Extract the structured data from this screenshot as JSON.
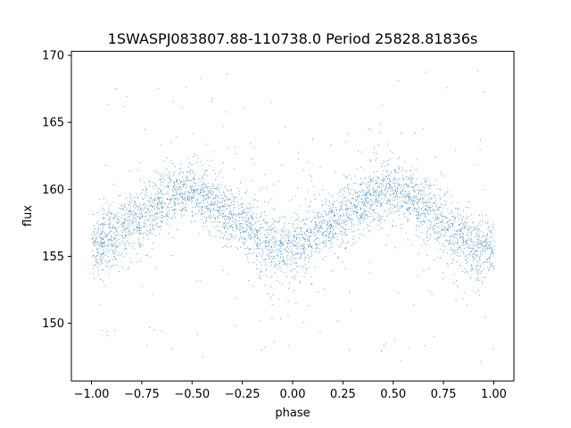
{
  "chart_data": {
    "type": "scatter",
    "title": "1SWASPJ083807.88-110738.0 Period 25828.81836s",
    "xlabel": "phase",
    "ylabel": "flux",
    "xlim": [
      -1.1,
      1.1
    ],
    "ylim": [
      145.7,
      170.3
    ],
    "xticks": [
      -1.0,
      -0.75,
      -0.5,
      -0.25,
      0.0,
      0.25,
      0.5,
      0.75,
      1.0
    ],
    "xtick_labels": [
      "−1.00",
      "−0.75",
      "−0.50",
      "−0.25",
      "0.00",
      "0.25",
      "0.50",
      "0.75",
      "1.00"
    ],
    "yticks": [
      150,
      155,
      160,
      165,
      170
    ],
    "ytick_labels": [
      "150",
      "155",
      "160",
      "165",
      "170"
    ],
    "grid": false,
    "point_color": "#1f77b4",
    "series": [
      {
        "description_of_shape": "folded light curve, sinusoid-like",
        "x": [
          -1.0,
          -0.9,
          -0.8,
          -0.7,
          -0.6,
          -0.5,
          -0.4,
          -0.3,
          -0.2,
          -0.1,
          0.0,
          0.1,
          0.2,
          0.3,
          0.4,
          0.5,
          0.6,
          0.7,
          0.8,
          0.9,
          1.0
        ],
        "y": [
          155.8,
          156.5,
          157.5,
          158.7,
          159.7,
          159.9,
          159.2,
          158.0,
          156.8,
          155.7,
          155.6,
          156.5,
          157.5,
          158.7,
          159.7,
          159.9,
          159.2,
          158.0,
          156.8,
          155.7,
          155.6
        ]
      }
    ]
  }
}
